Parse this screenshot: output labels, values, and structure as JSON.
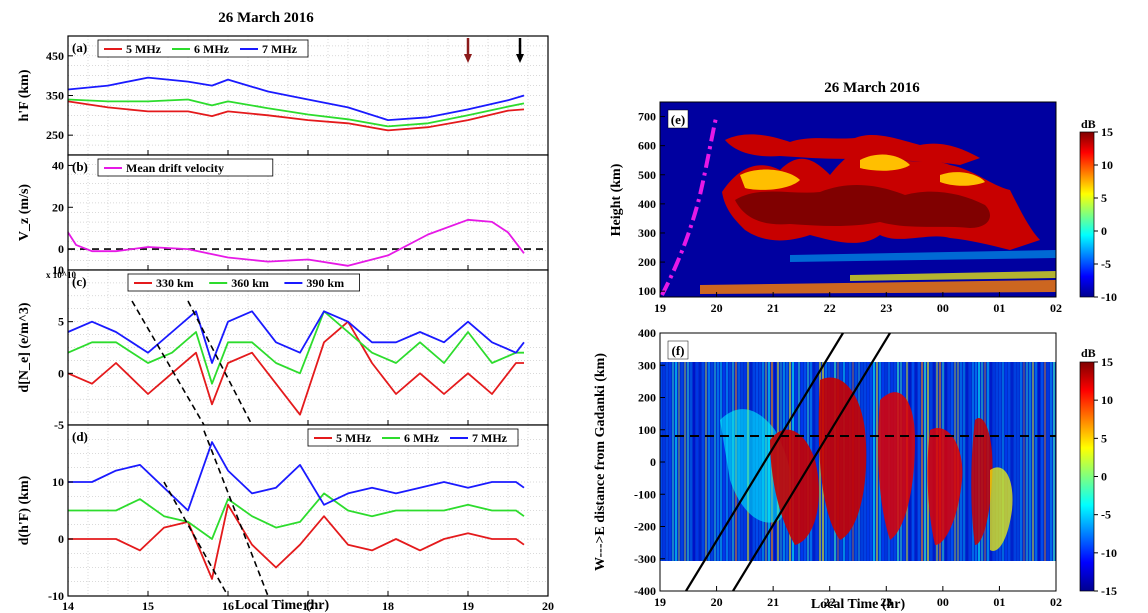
{
  "figure": {
    "left_title": "26 March 2016",
    "right_title": "26 March 2016",
    "left_xlabel": "Local Time (hr)",
    "right_xlabel": "Local Time (hr)"
  },
  "chart_data": [
    {
      "type": "line",
      "panel_label": "(a)",
      "ylabel": "h'F (km)",
      "ylim": [
        200,
        500
      ],
      "yticks": [
        250,
        350,
        450
      ],
      "xlim": [
        14,
        20
      ],
      "grid": true,
      "legend_position": "top-left",
      "series": [
        {
          "name": "5 MHz",
          "color": "#e41a1c",
          "x": [
            14,
            14.5,
            15,
            15.5,
            15.8,
            16,
            16.5,
            17,
            17.5,
            18,
            18.5,
            19,
            19.5,
            19.7
          ],
          "values": [
            335,
            320,
            310,
            310,
            298,
            310,
            300,
            288,
            280,
            262,
            270,
            288,
            312,
            315
          ]
        },
        {
          "name": "6 MHz",
          "color": "#2ddc2d",
          "x": [
            14,
            14.5,
            15,
            15.5,
            15.8,
            16,
            16.5,
            17,
            17.5,
            18,
            18.5,
            19,
            19.5,
            19.7
          ],
          "values": [
            340,
            335,
            335,
            340,
            325,
            335,
            318,
            302,
            290,
            272,
            280,
            300,
            322,
            330
          ]
        },
        {
          "name": "7 MHz",
          "color": "#1a1aff",
          "x": [
            14,
            14.5,
            15,
            15.5,
            15.8,
            16,
            16.5,
            17,
            17.5,
            18,
            18.5,
            19,
            19.5,
            19.7
          ],
          "values": [
            365,
            375,
            395,
            385,
            375,
            390,
            360,
            340,
            320,
            288,
            295,
            315,
            338,
            350
          ]
        }
      ],
      "arrows": [
        {
          "x": 19.0,
          "color": "#8b1a1a"
        },
        {
          "x": 19.65,
          "color": "#000000"
        }
      ]
    },
    {
      "type": "line",
      "panel_label": "(b)",
      "ylabel": "V_z (m/s)",
      "ylim": [
        -10,
        45
      ],
      "yticks": [
        0,
        20,
        40
      ],
      "xlim": [
        14,
        20
      ],
      "grid": true,
      "zero_line": true,
      "series": [
        {
          "name": "Mean drift velocity",
          "color": "#e619e6",
          "x": [
            14,
            14.1,
            14.3,
            14.6,
            15,
            15.5,
            16,
            16.5,
            17,
            17.5,
            18,
            18.5,
            19,
            19.3,
            19.5,
            19.7
          ],
          "values": [
            8,
            2,
            -1,
            -1,
            1,
            0,
            -4,
            -6,
            -5,
            -8,
            -3,
            7,
            14,
            13,
            8,
            -2
          ]
        }
      ]
    },
    {
      "type": "line",
      "panel_label": "(c)",
      "ylabel": "d[N_e] (e/m^3)",
      "multiplier": "x 10^10",
      "ylim": [
        -5,
        10
      ],
      "yticks": [
        -5,
        0,
        5,
        10
      ],
      "xlim": [
        14,
        20
      ],
      "grid": true,
      "legend_position": "top",
      "series": [
        {
          "name": "330 km",
          "color": "#e41a1c",
          "x": [
            14,
            14.3,
            14.6,
            15,
            15.3,
            15.6,
            15.8,
            16,
            16.3,
            16.6,
            16.9,
            17.2,
            17.5,
            17.8,
            18.1,
            18.4,
            18.7,
            19,
            19.3,
            19.6,
            19.7
          ],
          "values": [
            0,
            -1,
            1,
            -2,
            0,
            2,
            -3,
            1,
            2,
            -1,
            -4,
            3,
            5,
            1,
            -2,
            0,
            -2,
            0,
            -2,
            1,
            1
          ]
        },
        {
          "name": "360 km",
          "color": "#2ddc2d",
          "x": [
            14,
            14.3,
            14.6,
            15,
            15.3,
            15.6,
            15.8,
            16,
            16.3,
            16.6,
            16.9,
            17.2,
            17.5,
            17.8,
            18.1,
            18.4,
            18.7,
            19,
            19.3,
            19.6,
            19.7
          ],
          "values": [
            2,
            3,
            3,
            1,
            2,
            4,
            -1,
            3,
            3,
            1,
            0,
            6,
            4,
            2,
            1,
            3,
            1,
            4,
            1,
            2,
            2
          ]
        },
        {
          "name": "390 km",
          "color": "#1a1aff",
          "x": [
            14,
            14.3,
            14.6,
            15,
            15.3,
            15.6,
            15.8,
            16,
            16.3,
            16.6,
            16.9,
            17.2,
            17.5,
            17.8,
            18.1,
            18.4,
            18.7,
            19,
            19.3,
            19.6,
            19.7
          ],
          "values": [
            4,
            5,
            4,
            2,
            4,
            6,
            1,
            5,
            6,
            3,
            2,
            6,
            5,
            3,
            3,
            4,
            3,
            5,
            3,
            2,
            3
          ]
        }
      ],
      "dashed_lines": [
        [
          14.8,
          7,
          15.7,
          -5
        ],
        [
          15.5,
          7,
          16.3,
          -5
        ]
      ]
    },
    {
      "type": "line",
      "panel_label": "(d)",
      "ylabel": "d(h'F) (km)",
      "ylim": [
        -10,
        20
      ],
      "yticks": [
        -10,
        0,
        10
      ],
      "xlim": [
        14,
        20
      ],
      "grid": true,
      "legend_position": "top-right",
      "series": [
        {
          "name": "5 MHz",
          "color": "#e41a1c",
          "x": [
            14,
            14.3,
            14.6,
            14.9,
            15.2,
            15.5,
            15.8,
            16,
            16.3,
            16.6,
            16.9,
            17.2,
            17.5,
            17.8,
            18.1,
            18.4,
            18.7,
            19,
            19.3,
            19.6,
            19.7
          ],
          "values": [
            0,
            0,
            0,
            -2,
            2,
            3,
            -7,
            6,
            -1,
            -5,
            -1,
            4,
            -1,
            -2,
            0,
            -2,
            0,
            1,
            0,
            0,
            -1
          ]
        },
        {
          "name": "6 MHz",
          "color": "#2ddc2d",
          "x": [
            14,
            14.3,
            14.6,
            14.9,
            15.2,
            15.5,
            15.8,
            16,
            16.3,
            16.6,
            16.9,
            17.2,
            17.5,
            17.8,
            18.1,
            18.4,
            18.7,
            19,
            19.3,
            19.6,
            19.7
          ],
          "values": [
            5,
            5,
            5,
            7,
            4,
            3,
            0,
            7,
            4,
            2,
            3,
            8,
            5,
            4,
            5,
            5,
            5,
            6,
            5,
            5,
            4
          ]
        },
        {
          "name": "7 MHz",
          "color": "#1a1aff",
          "x": [
            14,
            14.3,
            14.6,
            14.9,
            15.2,
            15.5,
            15.8,
            16,
            16.3,
            16.6,
            16.9,
            17.2,
            17.5,
            17.8,
            18.1,
            18.4,
            18.7,
            19,
            19.3,
            19.6,
            19.7
          ],
          "values": [
            10,
            10,
            12,
            13,
            9,
            5,
            17,
            12,
            8,
            9,
            13,
            6,
            8,
            9,
            8,
            9,
            10,
            9,
            10,
            10,
            9
          ]
        }
      ],
      "dashed_lines": [
        [
          15.2,
          10,
          16.0,
          -10
        ],
        [
          15.7,
          19,
          16.5,
          -10
        ]
      ]
    },
    {
      "type": "heatmap",
      "panel_label": "(e)",
      "ylabel": "Height (km)",
      "ylim": [
        80,
        750
      ],
      "yticks": [
        100,
        200,
        300,
        400,
        500,
        600,
        700
      ],
      "xlim": [
        19,
        26
      ],
      "xtick_labels": [
        "19",
        "20",
        "21",
        "22",
        "23",
        "00",
        "01",
        "02"
      ],
      "colorbar": {
        "unit": "dB",
        "range": [
          -10,
          15
        ],
        "ticks": [
          -10,
          -5,
          0,
          5,
          10,
          15
        ]
      },
      "overlay": "magenta dash-dot curve"
    },
    {
      "type": "heatmap",
      "panel_label": "(f)",
      "ylabel": "W--->E distance from Gadanki (km)",
      "ylim": [
        -400,
        400
      ],
      "yticks": [
        -400,
        -300,
        -200,
        -100,
        0,
        100,
        200,
        300,
        400
      ],
      "xlim": [
        19,
        26
      ],
      "xtick_labels": [
        "19",
        "20",
        "21",
        "22",
        "23",
        "00",
        "01",
        "02"
      ],
      "colorbar": {
        "unit": "dB",
        "range": [
          -15,
          15
        ],
        "ticks": [
          -15,
          -10,
          -5,
          0,
          5,
          10,
          15
        ]
      }
    }
  ],
  "colors": {
    "bg_dark": "#0000a0",
    "grid": "#b4b4b4",
    "magenta": "#e619e6"
  }
}
